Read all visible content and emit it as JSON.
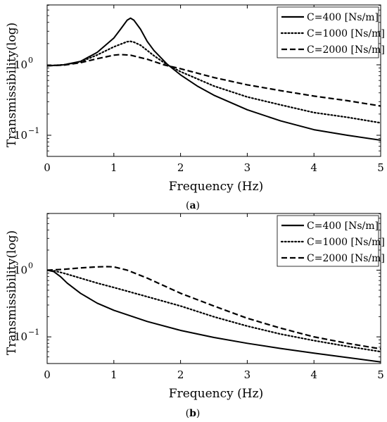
{
  "chart_data": [
    {
      "type": "line",
      "caption_letter": "a",
      "xlabel": "Frequency (Hz)",
      "ylabel": "Transmissibility(log)",
      "xlim": [
        0,
        5
      ],
      "ylim_log10": [
        -1.3,
        0.85
      ],
      "yscale": "log",
      "x_ticks": [
        0,
        1,
        2,
        3,
        4,
        5
      ],
      "y_ticks": [
        {
          "exp": 0,
          "label_base": "10",
          "label_exp": "0"
        },
        {
          "exp": -1,
          "label_base": "10",
          "label_exp": "−1"
        }
      ],
      "grid": false,
      "legend_position": "top-right",
      "series": [
        {
          "name": "C=400 [Ns/m]",
          "style": "solid",
          "x": [
            0,
            0.25,
            0.5,
            0.75,
            1.0,
            1.1,
            1.2,
            1.25,
            1.3,
            1.4,
            1.5,
            1.6,
            1.8,
            2.0,
            2.25,
            2.5,
            3.0,
            3.5,
            4.0,
            4.5,
            5.0
          ],
          "y": [
            0.97,
            1.0,
            1.12,
            1.5,
            2.4,
            3.2,
            4.3,
            4.6,
            4.3,
            3.2,
            2.15,
            1.6,
            1.02,
            0.72,
            0.5,
            0.37,
            0.23,
            0.16,
            0.12,
            0.1,
            0.085
          ]
        },
        {
          "name": "C=1000 [Ns/m]",
          "style": "dotted",
          "x": [
            0,
            0.25,
            0.5,
            0.75,
            1.0,
            1.2,
            1.25,
            1.3,
            1.4,
            1.5,
            1.6,
            1.8,
            2.0,
            2.5,
            3.0,
            3.5,
            4.0,
            4.5,
            5.0
          ],
          "y": [
            0.97,
            1.0,
            1.1,
            1.38,
            1.8,
            2.13,
            2.15,
            2.1,
            1.9,
            1.6,
            1.35,
            1.0,
            0.8,
            0.5,
            0.35,
            0.27,
            0.21,
            0.18,
            0.15
          ]
        },
        {
          "name": "C=2000 [Ns/m]",
          "style": "dashed",
          "x": [
            0,
            0.25,
            0.5,
            0.75,
            1.0,
            1.1,
            1.25,
            1.5,
            1.75,
            2.0,
            2.5,
            3.0,
            3.5,
            4.0,
            4.5,
            5.0
          ],
          "y": [
            0.97,
            0.99,
            1.07,
            1.22,
            1.37,
            1.4,
            1.37,
            1.2,
            1.0,
            0.88,
            0.66,
            0.52,
            0.43,
            0.36,
            0.31,
            0.26
          ]
        }
      ]
    },
    {
      "type": "line",
      "caption_letter": "b",
      "xlabel": "Frequency (Hz)",
      "ylabel": "Transmissibility(log)",
      "xlim": [
        0,
        5
      ],
      "ylim_log10": [
        -1.4,
        0.85
      ],
      "yscale": "log",
      "x_ticks": [
        0,
        1,
        2,
        3,
        4,
        5
      ],
      "y_ticks": [
        {
          "exp": 0,
          "label_base": "10",
          "label_exp": "0"
        },
        {
          "exp": -1,
          "label_base": "10",
          "label_exp": "−1"
        }
      ],
      "grid": false,
      "legend_position": "top-right",
      "series": [
        {
          "name": "C=400 [Ns/m]",
          "style": "solid",
          "x": [
            0,
            0.1,
            0.2,
            0.3,
            0.5,
            0.75,
            1.0,
            1.5,
            2.0,
            2.5,
            3.0,
            3.5,
            4.0,
            4.5,
            5.0
          ],
          "y": [
            1.0,
            0.95,
            0.8,
            0.64,
            0.45,
            0.32,
            0.25,
            0.17,
            0.125,
            0.098,
            0.08,
            0.067,
            0.057,
            0.049,
            0.042
          ]
        },
        {
          "name": "C=1000 [Ns/m]",
          "style": "dotted",
          "x": [
            0,
            0.1,
            0.25,
            0.5,
            0.75,
            1.0,
            1.5,
            2.0,
            2.5,
            3.0,
            3.5,
            4.0,
            4.5,
            5.0
          ],
          "y": [
            1.0,
            0.98,
            0.9,
            0.76,
            0.64,
            0.55,
            0.4,
            0.29,
            0.2,
            0.145,
            0.11,
            0.088,
            0.072,
            0.06
          ]
        },
        {
          "name": "C=2000 [Ns/m]",
          "style": "dashed",
          "x": [
            0,
            0.25,
            0.5,
            0.75,
            0.9,
            1.0,
            1.2,
            1.5,
            2.0,
            2.5,
            3.0,
            3.5,
            4.0,
            4.5,
            5.0
          ],
          "y": [
            1.0,
            1.03,
            1.08,
            1.12,
            1.13,
            1.12,
            1.0,
            0.76,
            0.45,
            0.29,
            0.19,
            0.135,
            0.1,
            0.08,
            0.066
          ]
        }
      ]
    }
  ]
}
